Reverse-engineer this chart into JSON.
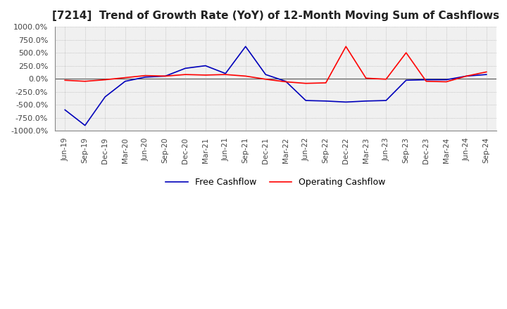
{
  "title": "[7214]  Trend of Growth Rate (YoY) of 12-Month Moving Sum of Cashflows",
  "title_fontsize": 11,
  "ylim": [
    -1000,
    1000
  ],
  "yticks": [
    -1000,
    -750,
    -500,
    -250,
    0,
    250,
    500,
    750,
    1000
  ],
  "ytick_labels": [
    "-1000.0%",
    "-750.0%",
    "-500.0%",
    "-250.0%",
    "0.0%",
    "250.0%",
    "500.0%",
    "750.0%",
    "1000.0%"
  ],
  "x_labels": [
    "Jun-19",
    "Sep-19",
    "Dec-19",
    "Mar-20",
    "Jun-20",
    "Sep-20",
    "Dec-20",
    "Mar-21",
    "Jun-21",
    "Sep-21",
    "Dec-21",
    "Mar-22",
    "Jun-22",
    "Sep-22",
    "Dec-22",
    "Mar-23",
    "Jun-23",
    "Sep-23",
    "Dec-23",
    "Mar-24",
    "Jun-24",
    "Sep-24"
  ],
  "operating_cashflow": [
    -30,
    -50,
    -20,
    20,
    60,
    50,
    80,
    70,
    80,
    50,
    -10,
    -60,
    -90,
    -80,
    620,
    10,
    -10,
    500,
    -50,
    -60,
    50,
    130
  ],
  "free_cashflow": [
    -600,
    -900,
    -350,
    -50,
    30,
    50,
    200,
    250,
    100,
    620,
    80,
    -50,
    -420,
    -430,
    -450,
    -430,
    -420,
    -30,
    -20,
    -20,
    50,
    80
  ],
  "op_color": "#ff0000",
  "fc_color": "#0000bb",
  "background_color": "#ffffff",
  "plot_bg_color": "#f0f0f0",
  "grid_color": "#aaaaaa",
  "zero_line_color": "#555555"
}
